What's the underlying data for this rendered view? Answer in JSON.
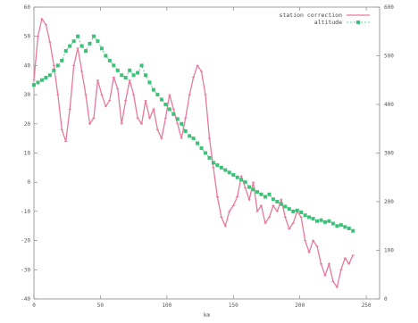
{
  "chart_data": {
    "type": "line",
    "xlabel": "km",
    "ylabel": "",
    "y2label": "",
    "xlim": [
      0,
      260
    ],
    "ylim": [
      -40,
      60
    ],
    "y2lim": [
      0,
      600
    ],
    "xticks": [
      "0",
      "50",
      "100",
      "150",
      "200",
      "250"
    ],
    "yticks": [
      "-40",
      "-30",
      "-20",
      "-10",
      "0",
      "10",
      "20",
      "30",
      "40",
      "50",
      "60"
    ],
    "y2ticks": [
      "0",
      "100",
      "200",
      "300",
      "400",
      "500",
      "600"
    ],
    "legend_position": "top-right",
    "grid": false,
    "series": [
      {
        "name": "station correction",
        "axis": "left",
        "color": "#e8799a",
        "style": "line-with-points",
        "x": [
          0,
          3,
          6,
          9,
          12,
          15,
          18,
          21,
          24,
          27,
          30,
          33,
          36,
          39,
          42,
          45,
          48,
          51,
          54,
          57,
          60,
          63,
          66,
          69,
          72,
          75,
          78,
          81,
          84,
          87,
          90,
          93,
          96,
          99,
          102,
          105,
          108,
          111,
          114,
          117,
          120,
          123,
          126,
          129,
          132,
          135,
          138,
          141,
          144,
          147,
          150,
          153,
          156,
          159,
          162,
          165,
          168,
          171,
          174,
          177,
          180,
          183,
          186,
          189,
          192,
          195,
          198,
          201,
          204,
          207,
          210,
          213,
          216,
          219,
          222,
          225,
          228,
          231,
          234,
          237,
          240
        ],
        "y": [
          35,
          50,
          56,
          54,
          48,
          40,
          30,
          18,
          14,
          25,
          40,
          46,
          38,
          30,
          20,
          22,
          35,
          30,
          26,
          28,
          36,
          32,
          20,
          28,
          35,
          30,
          22,
          20,
          28,
          22,
          25,
          18,
          15,
          22,
          30,
          25,
          20,
          15,
          22,
          30,
          36,
          40,
          38,
          30,
          15,
          5,
          -5,
          -12,
          -15,
          -10,
          -8,
          -5,
          2,
          -2,
          -6,
          0,
          -10,
          -8,
          -14,
          -12,
          -8,
          -10,
          -6,
          -12,
          -16,
          -14,
          -10,
          -12,
          -20,
          -24,
          -20,
          -22,
          -28,
          -32,
          -28,
          -34,
          -36,
          -30,
          -26,
          -28,
          -25
        ]
      },
      {
        "name": "altitude",
        "axis": "right",
        "color": "#3cc278",
        "style": "points-dashed",
        "x": [
          0,
          3,
          6,
          9,
          12,
          15,
          18,
          21,
          24,
          27,
          30,
          33,
          36,
          39,
          42,
          45,
          48,
          51,
          54,
          57,
          60,
          63,
          66,
          69,
          72,
          75,
          78,
          81,
          84,
          87,
          90,
          93,
          96,
          99,
          102,
          105,
          108,
          111,
          114,
          117,
          120,
          123,
          126,
          129,
          132,
          135,
          138,
          141,
          144,
          147,
          150,
          153,
          156,
          159,
          162,
          165,
          168,
          171,
          174,
          177,
          180,
          183,
          186,
          189,
          192,
          195,
          198,
          201,
          204,
          207,
          210,
          213,
          216,
          219,
          222,
          225,
          228,
          231,
          234,
          237,
          240
        ],
        "y": [
          440,
          445,
          450,
          455,
          460,
          470,
          480,
          490,
          510,
          520,
          530,
          540,
          520,
          510,
          525,
          540,
          530,
          515,
          500,
          490,
          480,
          470,
          460,
          455,
          470,
          460,
          465,
          480,
          460,
          445,
          430,
          420,
          410,
          400,
          390,
          380,
          370,
          360,
          345,
          335,
          330,
          320,
          310,
          300,
          290,
          280,
          275,
          270,
          265,
          260,
          255,
          250,
          245,
          240,
          230,
          225,
          220,
          215,
          210,
          215,
          205,
          200,
          195,
          190,
          185,
          180,
          182,
          178,
          172,
          168,
          165,
          160,
          162,
          158,
          160,
          155,
          150,
          152,
          148,
          145,
          140
        ]
      }
    ]
  }
}
